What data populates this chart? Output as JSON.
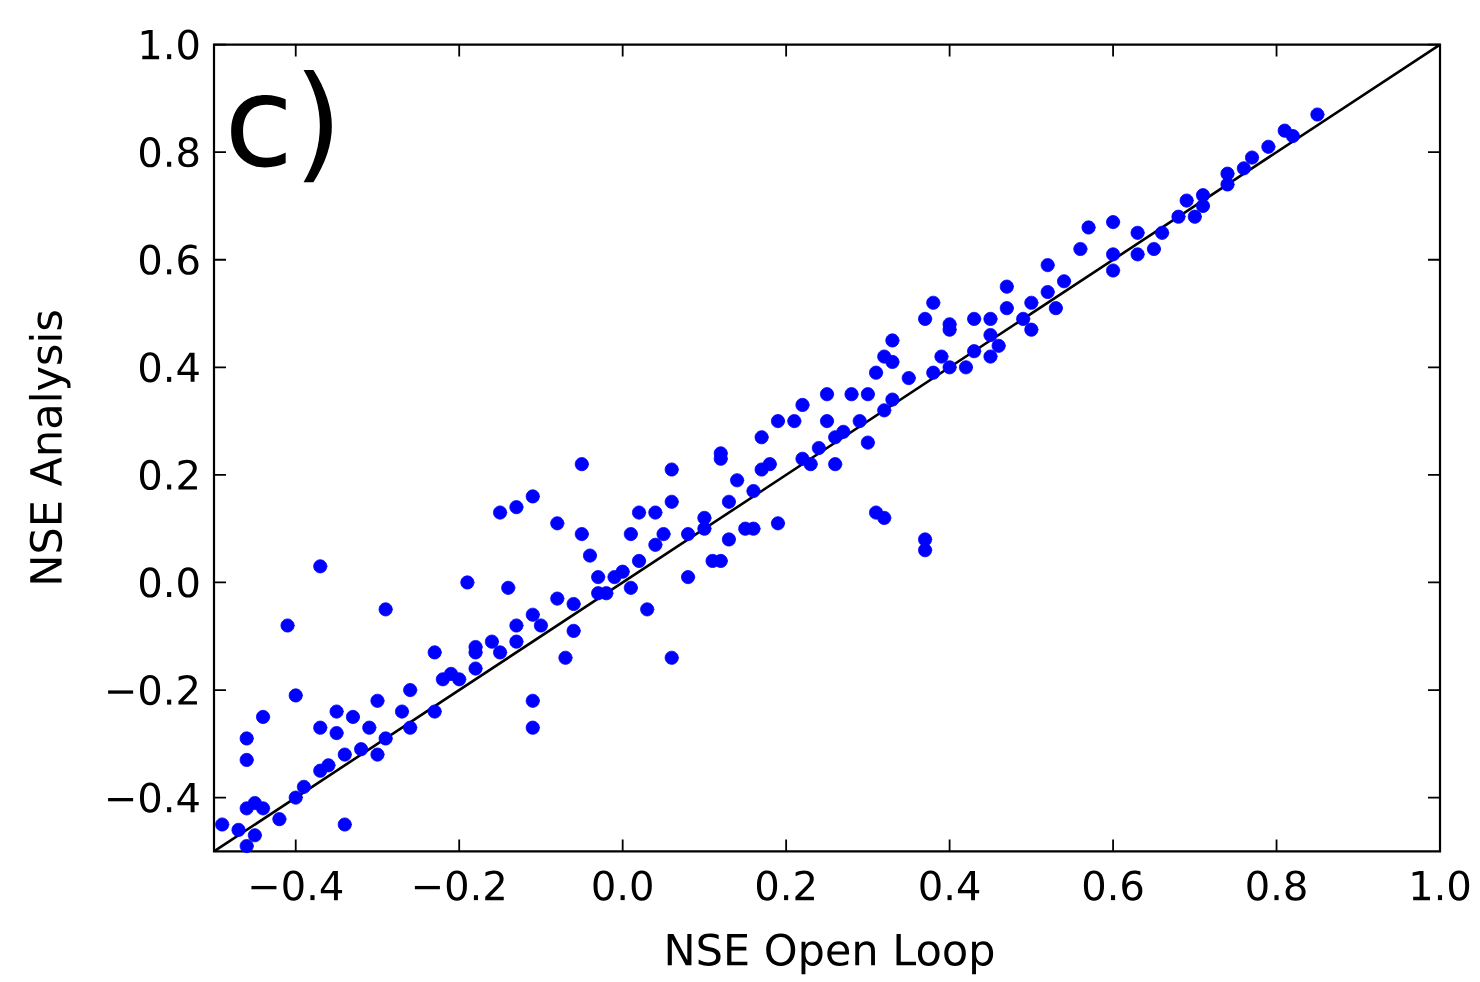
{
  "chart_data": {
    "type": "scatter",
    "annotations": [
      "c)"
    ],
    "xlabel": "NSE Open Loop",
    "ylabel": "NSE Analysis",
    "xlim": [
      -0.5,
      1.0
    ],
    "ylim": [
      -0.5,
      1.0
    ],
    "xticks": [
      {
        "value": -0.4,
        "label": "−0.4"
      },
      {
        "value": -0.2,
        "label": "−0.2"
      },
      {
        "value": 0.0,
        "label": "0.0"
      },
      {
        "value": 0.2,
        "label": "0.2"
      },
      {
        "value": 0.4,
        "label": "0.4"
      },
      {
        "value": 0.6,
        "label": "0.6"
      },
      {
        "value": 0.8,
        "label": "0.8"
      },
      {
        "value": 1.0,
        "label": "1.0"
      }
    ],
    "yticks": [
      {
        "value": -0.4,
        "label": "−0.4"
      },
      {
        "value": -0.2,
        "label": "−0.2"
      },
      {
        "value": 0.0,
        "label": "0.0"
      },
      {
        "value": 0.2,
        "label": "0.2"
      },
      {
        "value": 0.4,
        "label": "0.4"
      },
      {
        "value": 0.6,
        "label": "0.6"
      },
      {
        "value": 0.8,
        "label": "0.8"
      },
      {
        "value": 1.0,
        "label": "1.0"
      }
    ],
    "series": [
      {
        "color": "#0000ff",
        "marker": "circle",
        "x": [
          -0.49,
          -0.47,
          -0.45,
          -0.46,
          -0.46,
          -0.45,
          -0.44,
          -0.42,
          -0.46,
          -0.46,
          -0.44,
          -0.41,
          -0.4,
          -0.4,
          -0.39,
          -0.37,
          -0.37,
          -0.37,
          -0.36,
          -0.35,
          -0.35,
          -0.34,
          -0.34,
          -0.33,
          -0.32,
          -0.31,
          -0.3,
          -0.3,
          -0.29,
          -0.29,
          -0.27,
          -0.26,
          -0.26,
          -0.23,
          -0.23,
          -0.22,
          -0.21,
          -0.2,
          -0.19,
          -0.18,
          -0.18,
          -0.18,
          -0.16,
          -0.15,
          -0.15,
          -0.14,
          -0.13,
          -0.13,
          -0.13,
          -0.11,
          -0.11,
          -0.11,
          -0.11,
          -0.1,
          -0.08,
          -0.08,
          -0.07,
          -0.06,
          -0.06,
          -0.05,
          -0.05,
          -0.04,
          -0.03,
          -0.03,
          -0.02,
          -0.01,
          0.0,
          0.01,
          0.01,
          0.02,
          0.02,
          0.03,
          0.04,
          0.04,
          0.05,
          0.06,
          0.06,
          0.06,
          0.08,
          0.08,
          0.1,
          0.1,
          0.11,
          0.12,
          0.12,
          0.12,
          0.13,
          0.13,
          0.14,
          0.15,
          0.16,
          0.16,
          0.17,
          0.17,
          0.18,
          0.19,
          0.19,
          0.21,
          0.22,
          0.22,
          0.23,
          0.24,
          0.25,
          0.25,
          0.26,
          0.26,
          0.27,
          0.28,
          0.29,
          0.3,
          0.3,
          0.31,
          0.31,
          0.32,
          0.32,
          0.32,
          0.33,
          0.33,
          0.33,
          0.35,
          0.37,
          0.37,
          0.37,
          0.38,
          0.38,
          0.39,
          0.4,
          0.4,
          0.4,
          0.42,
          0.43,
          0.43,
          0.45,
          0.45,
          0.45,
          0.46,
          0.47,
          0.47,
          0.49,
          0.5,
          0.5,
          0.52,
          0.52,
          0.53,
          0.54,
          0.56,
          0.57,
          0.6,
          0.6,
          0.6,
          0.63,
          0.63,
          0.65,
          0.66,
          0.68,
          0.69,
          0.7,
          0.71,
          0.71,
          0.74,
          0.74,
          0.76,
          0.77,
          0.79,
          0.81,
          0.82,
          0.85
        ],
        "values": [
          -0.45,
          -0.46,
          -0.47,
          -0.49,
          -0.42,
          -0.41,
          -0.42,
          -0.44,
          -0.33,
          -0.29,
          -0.25,
          -0.08,
          -0.4,
          -0.21,
          -0.38,
          -0.35,
          -0.27,
          0.03,
          -0.34,
          -0.24,
          -0.28,
          -0.45,
          -0.32,
          -0.25,
          -0.31,
          -0.27,
          -0.32,
          -0.22,
          -0.29,
          -0.05,
          -0.24,
          -0.27,
          -0.2,
          -0.24,
          -0.13,
          -0.18,
          -0.17,
          -0.18,
          0.0,
          -0.16,
          -0.13,
          -0.12,
          -0.11,
          -0.13,
          0.13,
          -0.01,
          -0.11,
          -0.08,
          0.14,
          -0.27,
          -0.22,
          -0.06,
          0.16,
          -0.08,
          -0.03,
          0.11,
          -0.14,
          -0.09,
          -0.04,
          0.09,
          0.22,
          0.05,
          -0.02,
          0.01,
          -0.02,
          0.01,
          0.02,
          -0.01,
          0.09,
          0.04,
          0.13,
          -0.05,
          0.07,
          0.13,
          0.09,
          -0.14,
          0.15,
          0.21,
          0.01,
          0.09,
          0.1,
          0.12,
          0.04,
          0.04,
          0.23,
          0.24,
          0.08,
          0.15,
          0.19,
          0.1,
          0.1,
          0.17,
          0.21,
          0.27,
          0.22,
          0.11,
          0.3,
          0.3,
          0.23,
          0.33,
          0.22,
          0.25,
          0.3,
          0.35,
          0.22,
          0.27,
          0.28,
          0.35,
          0.3,
          0.26,
          0.35,
          0.13,
          0.39,
          0.12,
          0.32,
          0.42,
          0.34,
          0.41,
          0.45,
          0.38,
          0.06,
          0.08,
          0.49,
          0.39,
          0.52,
          0.42,
          0.4,
          0.47,
          0.48,
          0.4,
          0.43,
          0.49,
          0.42,
          0.46,
          0.49,
          0.44,
          0.51,
          0.55,
          0.49,
          0.47,
          0.52,
          0.54,
          0.59,
          0.51,
          0.56,
          0.62,
          0.66,
          0.58,
          0.61,
          0.67,
          0.61,
          0.65,
          0.62,
          0.65,
          0.68,
          0.71,
          0.68,
          0.7,
          0.72,
          0.74,
          0.76,
          0.77,
          0.79,
          0.81,
          0.84,
          0.83,
          0.87
        ]
      },
      {
        "type": "line",
        "color": "#000000",
        "marker": "none",
        "line_style": "solid",
        "x": [
          -0.5,
          1.0
        ],
        "values": [
          -0.5,
          1.0
        ]
      }
    ]
  }
}
